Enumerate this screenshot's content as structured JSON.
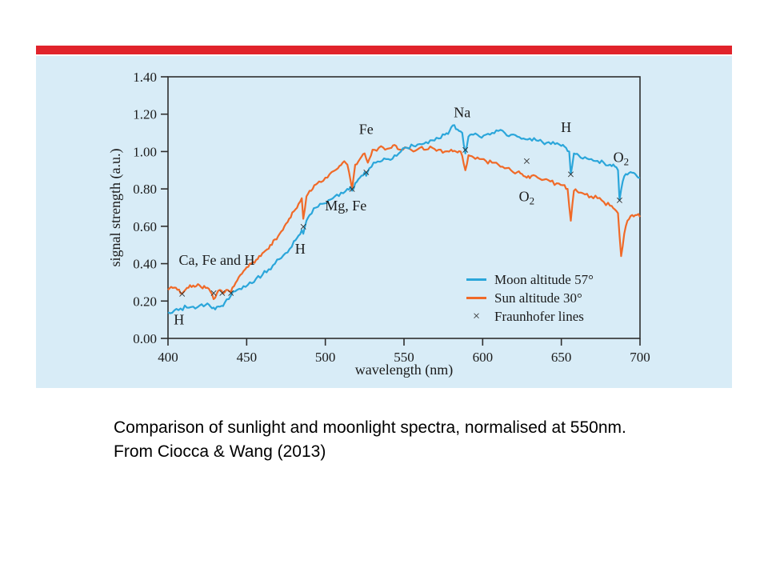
{
  "slide": {
    "caption": {
      "line1": "Comparison of sunlight and moonlight spectra, normalised at 550nm.",
      "line2": "From Ciocca & Wang (2013)"
    }
  },
  "colors": {
    "accent_bar": "#e1232b",
    "panel_bg": "#d8ecf7",
    "axis": "#2e2e2e",
    "moon": "#2ba6da",
    "sun": "#f06a28",
    "marker": "#2e2e2e"
  },
  "chart_data": {
    "type": "line",
    "title": "",
    "xlabel": "wavelength (nm)",
    "ylabel": "signal strength (a.u.)",
    "xlim": [
      400,
      700
    ],
    "ylim": [
      0,
      1.4
    ],
    "x_ticks": [
      400,
      450,
      500,
      550,
      600,
      650,
      700
    ],
    "y_ticks": [
      0.0,
      0.2,
      0.4,
      0.6,
      0.8,
      1.0,
      1.2,
      1.4
    ],
    "grid": false,
    "legend_position": "inside-right-lower",
    "series": [
      {
        "name": "Moon altitude 57°",
        "color_key": "moon",
        "points": [
          [
            400,
            0.14
          ],
          [
            404,
            0.15
          ],
          [
            408,
            0.16
          ],
          [
            412,
            0.165
          ],
          [
            416,
            0.17
          ],
          [
            420,
            0.175
          ],
          [
            424,
            0.18
          ],
          [
            427,
            0.17
          ],
          [
            430,
            0.155
          ],
          [
            433,
            0.17
          ],
          [
            436,
            0.19
          ],
          [
            440,
            0.23
          ],
          [
            444,
            0.26
          ],
          [
            448,
            0.28
          ],
          [
            452,
            0.3
          ],
          [
            456,
            0.32
          ],
          [
            460,
            0.34
          ],
          [
            464,
            0.37
          ],
          [
            468,
            0.4
          ],
          [
            472,
            0.43
          ],
          [
            476,
            0.46
          ],
          [
            480,
            0.52
          ],
          [
            483,
            0.55
          ],
          [
            485,
            0.58
          ],
          [
            486,
            0.56
          ],
          [
            488,
            0.63
          ],
          [
            490,
            0.66
          ],
          [
            494,
            0.7
          ],
          [
            498,
            0.72
          ],
          [
            502,
            0.74
          ],
          [
            506,
            0.76
          ],
          [
            510,
            0.78
          ],
          [
            514,
            0.8
          ],
          [
            516,
            0.81
          ],
          [
            517,
            0.79
          ],
          [
            519,
            0.83
          ],
          [
            522,
            0.86
          ],
          [
            525,
            0.89
          ],
          [
            526,
            0.87
          ],
          [
            528,
            0.91
          ],
          [
            532,
            0.94
          ],
          [
            536,
            0.95
          ],
          [
            540,
            0.96
          ],
          [
            544,
            0.98
          ],
          [
            548,
            1.0
          ],
          [
            552,
            1.02
          ],
          [
            556,
            1.03
          ],
          [
            560,
            1.04
          ],
          [
            564,
            1.05
          ],
          [
            568,
            1.06
          ],
          [
            572,
            1.07
          ],
          [
            576,
            1.09
          ],
          [
            579,
            1.11
          ],
          [
            581,
            1.14
          ],
          [
            583,
            1.12
          ],
          [
            585,
            1.11
          ],
          [
            587,
            1.1
          ],
          [
            589,
            0.99
          ],
          [
            591,
            1.08
          ],
          [
            594,
            1.09
          ],
          [
            598,
            1.08
          ],
          [
            602,
            1.09
          ],
          [
            606,
            1.1
          ],
          [
            610,
            1.11
          ],
          [
            614,
            1.1
          ],
          [
            618,
            1.09
          ],
          [
            622,
            1.08
          ],
          [
            626,
            1.07
          ],
          [
            630,
            1.07
          ],
          [
            634,
            1.06
          ],
          [
            638,
            1.05
          ],
          [
            642,
            1.05
          ],
          [
            646,
            1.04
          ],
          [
            650,
            1.03
          ],
          [
            653,
            1.02
          ],
          [
            655,
            1.0
          ],
          [
            656,
            0.88
          ],
          [
            658,
            0.99
          ],
          [
            661,
            0.98
          ],
          [
            665,
            0.97
          ],
          [
            669,
            0.96
          ],
          [
            673,
            0.95
          ],
          [
            677,
            0.94
          ],
          [
            681,
            0.93
          ],
          [
            684,
            0.92
          ],
          [
            686,
            0.9
          ],
          [
            687,
            0.74
          ],
          [
            689,
            0.84
          ],
          [
            691,
            0.88
          ],
          [
            694,
            0.89
          ],
          [
            697,
            0.88
          ],
          [
            700,
            0.86
          ]
        ]
      },
      {
        "name": "Sun altitude 30°",
        "color_key": "sun",
        "points": [
          [
            400,
            0.26
          ],
          [
            403,
            0.27
          ],
          [
            406,
            0.26
          ],
          [
            409,
            0.24
          ],
          [
            412,
            0.27
          ],
          [
            415,
            0.275
          ],
          [
            418,
            0.28
          ],
          [
            421,
            0.275
          ],
          [
            424,
            0.27
          ],
          [
            427,
            0.25
          ],
          [
            429,
            0.21
          ],
          [
            431,
            0.24
          ],
          [
            433,
            0.26
          ],
          [
            435,
            0.24
          ],
          [
            437,
            0.26
          ],
          [
            440,
            0.25
          ],
          [
            442,
            0.28
          ],
          [
            444,
            0.31
          ],
          [
            446,
            0.34
          ],
          [
            448,
            0.36
          ],
          [
            450,
            0.38
          ],
          [
            453,
            0.4
          ],
          [
            456,
            0.42
          ],
          [
            459,
            0.44
          ],
          [
            462,
            0.47
          ],
          [
            465,
            0.5
          ],
          [
            468,
            0.53
          ],
          [
            471,
            0.56
          ],
          [
            474,
            0.6
          ],
          [
            477,
            0.64
          ],
          [
            480,
            0.68
          ],
          [
            483,
            0.72
          ],
          [
            485,
            0.75
          ],
          [
            486,
            0.64
          ],
          [
            488,
            0.76
          ],
          [
            490,
            0.79
          ],
          [
            493,
            0.82
          ],
          [
            496,
            0.84
          ],
          [
            500,
            0.86
          ],
          [
            504,
            0.89
          ],
          [
            508,
            0.91
          ],
          [
            511,
            0.94
          ],
          [
            514,
            0.93
          ],
          [
            517,
            0.8
          ],
          [
            519,
            0.93
          ],
          [
            522,
            0.96
          ],
          [
            525,
            0.99
          ],
          [
            527,
            0.94
          ],
          [
            530,
            1.01
          ],
          [
            534,
            1.02
          ],
          [
            538,
            1.01
          ],
          [
            542,
            1.02
          ],
          [
            545,
            1.03
          ],
          [
            548,
            1.01
          ],
          [
            552,
            1.02
          ],
          [
            556,
            1.0
          ],
          [
            560,
            1.02
          ],
          [
            564,
            1.01
          ],
          [
            568,
            1.02
          ],
          [
            572,
            1.01
          ],
          [
            576,
            1.0
          ],
          [
            580,
            1.01
          ],
          [
            583,
            1.0
          ],
          [
            586,
            1.0
          ],
          [
            589,
            0.9
          ],
          [
            591,
            0.98
          ],
          [
            594,
            0.97
          ],
          [
            598,
            0.96
          ],
          [
            602,
            0.95
          ],
          [
            606,
            0.94
          ],
          [
            610,
            0.93
          ],
          [
            614,
            0.91
          ],
          [
            618,
            0.9
          ],
          [
            622,
            0.89
          ],
          [
            625,
            0.88
          ],
          [
            628,
            0.86
          ],
          [
            631,
            0.87
          ],
          [
            635,
            0.86
          ],
          [
            639,
            0.85
          ],
          [
            643,
            0.84
          ],
          [
            647,
            0.83
          ],
          [
            651,
            0.82
          ],
          [
            654,
            0.8
          ],
          [
            656,
            0.63
          ],
          [
            658,
            0.79
          ],
          [
            661,
            0.78
          ],
          [
            665,
            0.77
          ],
          [
            669,
            0.76
          ],
          [
            673,
            0.75
          ],
          [
            677,
            0.73
          ],
          [
            681,
            0.71
          ],
          [
            684,
            0.69
          ],
          [
            686,
            0.67
          ],
          [
            688,
            0.44
          ],
          [
            690,
            0.56
          ],
          [
            692,
            0.63
          ],
          [
            695,
            0.66
          ],
          [
            698,
            0.66
          ],
          [
            700,
            0.65
          ]
        ]
      }
    ],
    "fraunhofer": {
      "label": "Fraunhofer lines",
      "glyph": "×",
      "points": [
        [
          409,
          0.24
        ],
        [
          429,
          0.245
        ],
        [
          434.5,
          0.245
        ],
        [
          440,
          0.245
        ],
        [
          486,
          0.6
        ],
        [
          517,
          0.8
        ],
        [
          526,
          0.89
        ],
        [
          589,
          1.01
        ],
        [
          628,
          0.95
        ],
        [
          656,
          0.88
        ],
        [
          687,
          0.74
        ]
      ]
    },
    "annotations": [
      {
        "text": "H",
        "sub": "",
        "x": 407,
        "y": 0.1
      },
      {
        "text": "Ca, Fe and H",
        "sub": "",
        "x": 431,
        "y": 0.42
      },
      {
        "text": "H",
        "sub": "",
        "x": 484,
        "y": 0.48
      },
      {
        "text": "Mg, Fe",
        "sub": "",
        "x": 513,
        "y": 0.71
      },
      {
        "text": "Fe",
        "sub": "",
        "x": 526,
        "y": 1.12
      },
      {
        "text": "Na",
        "sub": "",
        "x": 587,
        "y": 1.21
      },
      {
        "text": "O",
        "sub": "2",
        "x": 628,
        "y": 0.76
      },
      {
        "text": "H",
        "sub": "",
        "x": 653,
        "y": 1.13
      },
      {
        "text": "O",
        "sub": "2",
        "x": 688,
        "y": 0.97
      }
    ]
  }
}
